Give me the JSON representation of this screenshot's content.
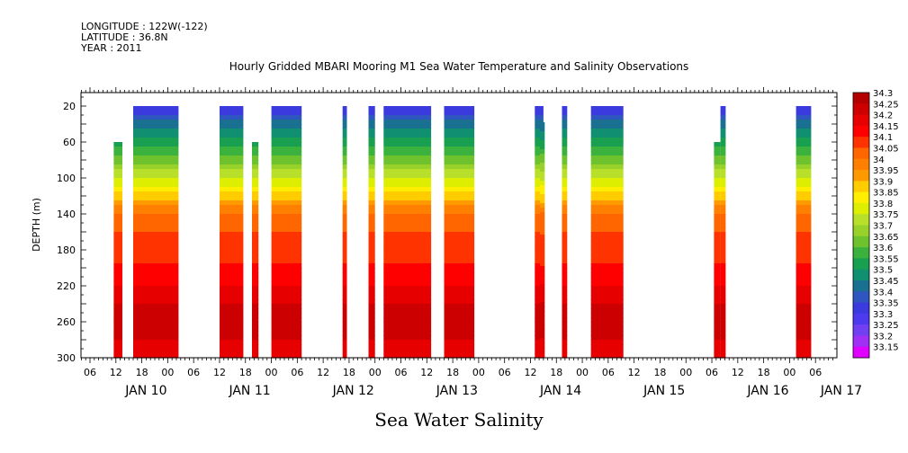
{
  "header": {
    "longitude": "LONGITUDE : 122W(-122)",
    "latitude": "LATITUDE : 36.8N",
    "year": "YEAR : 2011"
  },
  "chart_data": {
    "type": "heatmap",
    "title": "Hourly Gridded MBARI Mooring M1 Sea Water Temperature and Salinity Observations",
    "bottom_title": "Sea Water Salinity",
    "ylabel": "DEPTH (m)",
    "x_range_hours": [
      0,
      174
    ],
    "y_range_m": [
      300,
      5
    ],
    "y_ticks": [
      "20",
      "60",
      "100",
      "140",
      "180",
      "220",
      "260",
      "300"
    ],
    "y_tick_values": [
      20,
      60,
      100,
      140,
      180,
      220,
      260,
      300
    ],
    "x_hour_labels": [
      "06",
      "12",
      "18",
      "00",
      "06",
      "12",
      "18",
      "00",
      "06",
      "12",
      "18",
      "00",
      "06",
      "12",
      "18",
      "00",
      "06",
      "12",
      "18",
      "00",
      "06",
      "12",
      "18",
      "00",
      "06",
      "12",
      "18",
      "00",
      "06",
      "12",
      "18",
      "00"
    ],
    "x_hour_values": [
      0,
      6,
      12,
      18,
      24,
      30,
      36,
      42,
      48,
      54,
      60,
      66,
      72,
      78,
      84,
      90,
      96,
      102,
      108,
      114,
      120,
      126,
      132,
      138,
      144,
      150,
      156,
      162,
      168,
      174,
      180,
      186
    ],
    "x_day_labels": [
      "JAN 10",
      "JAN 11",
      "JAN 12",
      "JAN 13",
      "JAN 14",
      "JAN 15",
      "JAN 16",
      "JAN 17"
    ],
    "x_day_values": [
      13,
      37,
      61,
      85,
      109,
      133,
      157,
      174
    ],
    "colorbar": {
      "labels": [
        "34.3",
        "34.25",
        "34.2",
        "34.15",
        "34.1",
        "34.05",
        "34",
        "33.95",
        "33.9",
        "33.85",
        "33.8",
        "33.75",
        "33.7",
        "33.65",
        "33.6",
        "33.55",
        "33.5",
        "33.45",
        "33.4",
        "33.35",
        "33.3",
        "33.25",
        "33.2",
        "33.15"
      ],
      "colors": [
        "#b30000",
        "#cc0000",
        "#e60000",
        "#ff0000",
        "#ff3300",
        "#ff6600",
        "#ff8000",
        "#ff9900",
        "#ffcc00",
        "#ffee00",
        "#ddee00",
        "#b8e02a",
        "#99d12b",
        "#6dc22e",
        "#3cb23e",
        "#18a050",
        "#109070",
        "#1a7090",
        "#2f55c0",
        "#3a3ade",
        "#4d3af0",
        "#7040f2",
        "#a030f5",
        "#e000ff"
      ]
    },
    "segments": [
      {
        "start": 5.5,
        "end": 7.5,
        "top": 60
      },
      {
        "start": 10,
        "end": 20.5,
        "top": 20
      },
      {
        "start": 30,
        "end": 35.5,
        "top": 20
      },
      {
        "start": 37.5,
        "end": 39,
        "top": 60
      },
      {
        "start": 42,
        "end": 49,
        "top": 20
      },
      {
        "start": 58.5,
        "end": 59.5,
        "top": 20
      },
      {
        "start": 64.5,
        "end": 66,
        "top": 20
      },
      {
        "start": 68,
        "end": 79,
        "top": 20
      },
      {
        "start": 82,
        "end": 89,
        "top": 20
      },
      {
        "start": 103,
        "end": 105,
        "top": 20
      },
      {
        "start": 104.2,
        "end": 105.3,
        "top": 38
      },
      {
        "start": 109.3,
        "end": 110.5,
        "top": 20
      },
      {
        "start": 116,
        "end": 123.5,
        "top": 20
      },
      {
        "start": 144.5,
        "end": 146,
        "top": 60
      },
      {
        "start": 146,
        "end": 147.2,
        "top": 20
      },
      {
        "start": 163.5,
        "end": 167,
        "top": 20
      }
    ],
    "depth_profile": [
      {
        "depth": 20,
        "value": 33.33
      },
      {
        "depth": 45,
        "value": 33.47
      },
      {
        "depth": 65,
        "value": 33.57
      },
      {
        "depth": 85,
        "value": 33.68
      },
      {
        "depth": 105,
        "value": 33.8
      },
      {
        "depth": 125,
        "value": 33.92
      },
      {
        "depth": 140,
        "value": 34.03
      },
      {
        "depth": 170,
        "value": 34.09
      },
      {
        "depth": 200,
        "value": 34.13
      },
      {
        "depth": 220,
        "value": 34.18
      },
      {
        "depth": 240,
        "value": 34.23
      },
      {
        "depth": 270,
        "value": 34.26
      },
      {
        "depth": 285,
        "value": 34.2
      },
      {
        "depth": 300,
        "value": 34.17
      }
    ]
  }
}
